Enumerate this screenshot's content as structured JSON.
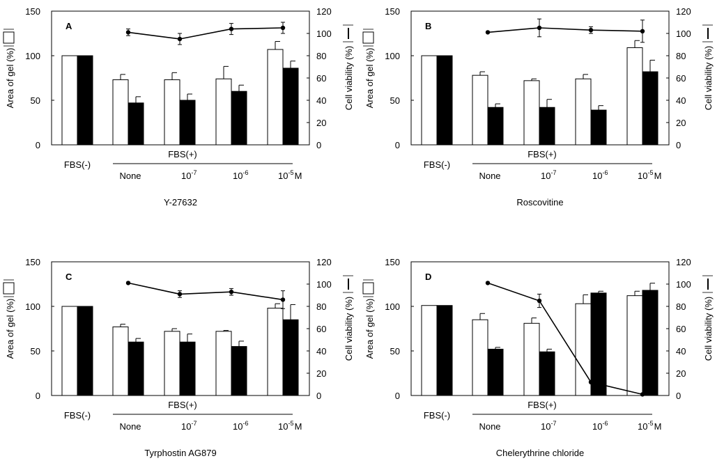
{
  "figure": {
    "panels": [
      {
        "letter": "A",
        "compound": "Y-27632"
      },
      {
        "letter": "B",
        "compound": "Roscovitine"
      },
      {
        "letter": "C",
        "compound": "Tyrphostin AG879"
      },
      {
        "letter": "D",
        "compound": "Chelerythrine chloride"
      }
    ],
    "labels": {
      "fbs_minus": "FBS(-)",
      "fbs_plus": "FBS(+)",
      "none": "None",
      "dose_base": "10",
      "exp_1": "-7",
      "exp_2": "-6",
      "exp_3": "-5",
      "unit": "M"
    },
    "colors": {
      "open_bar": "#ffffff",
      "filled_bar": "#000000",
      "line": "#000000"
    }
  },
  "chart_data": [
    {
      "type": "bar",
      "title": "",
      "panel": "A",
      "xlabel": "Y-27632",
      "ylabel": "Area of gel (%)",
      "y2label": "Cell viability (%)",
      "categories": [
        "FBS(-)",
        "None",
        "10-7",
        "10-6",
        "10-5"
      ],
      "ylim": [
        0,
        150
      ],
      "y2lim": [
        0,
        120
      ],
      "yticks": [
        0,
        50,
        100,
        150
      ],
      "y2ticks": [
        0,
        20,
        40,
        60,
        80,
        100,
        120
      ],
      "series": [
        {
          "type": "bar",
          "fill": "open",
          "values": [
            100,
            73,
            73,
            74,
            107
          ],
          "errors": [
            null,
            6,
            8,
            14,
            9
          ]
        },
        {
          "type": "bar",
          "fill": "filled",
          "values": [
            100,
            47,
            50,
            60,
            86
          ],
          "errors": [
            null,
            7,
            7,
            7,
            8
          ]
        },
        {
          "type": "line",
          "axis": "right",
          "values": [
            null,
            101,
            95,
            104,
            105
          ],
          "errors": [
            null,
            3,
            5,
            5,
            5
          ]
        }
      ]
    },
    {
      "type": "bar",
      "title": "",
      "panel": "B",
      "xlabel": "Roscovitine",
      "ylabel": "Area of gel (%)",
      "y2label": "Cell viability (%)",
      "categories": [
        "FBS(-)",
        "None",
        "10-7",
        "10-6",
        "10-5"
      ],
      "ylim": [
        0,
        150
      ],
      "y2lim": [
        0,
        120
      ],
      "yticks": [
        0,
        50,
        100,
        150
      ],
      "y2ticks": [
        0,
        20,
        40,
        60,
        80,
        100,
        120
      ],
      "series": [
        {
          "type": "bar",
          "fill": "open",
          "values": [
            100,
            78,
            72,
            74,
            109
          ],
          "errors": [
            null,
            4,
            2,
            5,
            8
          ]
        },
        {
          "type": "bar",
          "fill": "filled",
          "values": [
            100,
            42,
            42,
            39,
            82
          ],
          "errors": [
            null,
            4,
            9,
            5,
            13
          ]
        },
        {
          "type": "line",
          "axis": "right",
          "values": [
            null,
            101,
            105,
            103,
            102
          ],
          "errors": [
            null,
            0,
            8,
            3,
            10
          ]
        }
      ]
    },
    {
      "type": "bar",
      "title": "",
      "panel": "C",
      "xlabel": "Tyrphostin AG879",
      "ylabel": "Area of gel (%)",
      "y2label": "Cell viability (%)",
      "categories": [
        "FBS(-)",
        "None",
        "10-7",
        "10-6",
        "10-5"
      ],
      "ylim": [
        0,
        150
      ],
      "y2lim": [
        0,
        120
      ],
      "yticks": [
        0,
        50,
        100,
        150
      ],
      "y2ticks": [
        0,
        20,
        40,
        60,
        80,
        100,
        120
      ],
      "series": [
        {
          "type": "bar",
          "fill": "open",
          "values": [
            100,
            77,
            72,
            72,
            98
          ],
          "errors": [
            null,
            3,
            3,
            1,
            5
          ]
        },
        {
          "type": "bar",
          "fill": "filled",
          "values": [
            100,
            60,
            60,
            55,
            85
          ],
          "errors": [
            null,
            4,
            9,
            6,
            17
          ]
        },
        {
          "type": "line",
          "axis": "right",
          "values": [
            null,
            101,
            91,
            93,
            86
          ],
          "errors": [
            null,
            0,
            3,
            3,
            8
          ]
        }
      ]
    },
    {
      "type": "bar",
      "title": "",
      "panel": "D",
      "xlabel": "Chelerythrine chloride",
      "ylabel": "Area of gel (%)",
      "y2label": "Cell viability (%)",
      "categories": [
        "FBS(-)",
        "None",
        "10-7",
        "10-6",
        "10-5"
      ],
      "ylim": [
        0,
        150
      ],
      "y2lim": [
        0,
        120
      ],
      "yticks": [
        0,
        50,
        100,
        150
      ],
      "y2ticks": [
        0,
        20,
        40,
        60,
        80,
        100,
        120
      ],
      "series": [
        {
          "type": "bar",
          "fill": "open",
          "values": [
            101,
            85,
            81,
            103,
            112
          ],
          "errors": [
            null,
            7,
            6,
            10,
            5
          ]
        },
        {
          "type": "bar",
          "fill": "filled",
          "values": [
            101,
            52,
            49,
            115,
            118
          ],
          "errors": [
            null,
            2,
            3,
            2,
            8
          ]
        },
        {
          "type": "line",
          "axis": "right",
          "values": [
            null,
            101,
            85,
            12,
            1
          ],
          "errors": [
            null,
            0,
            6,
            0,
            0
          ]
        }
      ]
    }
  ]
}
